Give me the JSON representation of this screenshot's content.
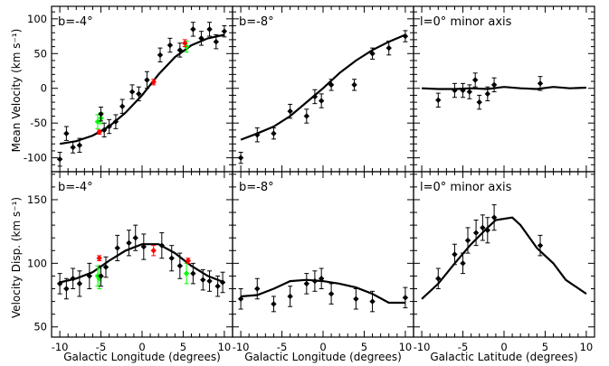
{
  "figure": {
    "ylabel_top": "Mean Velocity (km s⁻¹)",
    "ylabel_bottom": "Velocity Disp. (km s⁻¹)",
    "xlabel_longitude": "Galactic Longitude (degrees)",
    "xlabel_latitude": "Galactic Latitude (degrees)"
  },
  "chart_data": [
    {
      "id": "top-left",
      "type": "scatter",
      "title": "b=-4°",
      "xlim": [
        -11,
        11
      ],
      "ylim": [
        -120,
        118
      ],
      "xticks": [
        -10,
        -5,
        0,
        5,
        10
      ],
      "yticks": [
        -100,
        -50,
        0,
        50,
        100
      ],
      "model_line": [
        [
          -10,
          -80
        ],
        [
          -8,
          -76
        ],
        [
          -6,
          -68
        ],
        [
          -4,
          -55
        ],
        [
          -2,
          -35
        ],
        [
          0,
          -10
        ],
        [
          2,
          20
        ],
        [
          4,
          45
        ],
        [
          6,
          62
        ],
        [
          8,
          72
        ],
        [
          10,
          77
        ]
      ],
      "points": [
        {
          "x": -10,
          "y": -102,
          "err": 10,
          "color": "#000000"
        },
        {
          "x": -9.2,
          "y": -65,
          "err": 10,
          "color": "#000000"
        },
        {
          "x": -8.4,
          "y": -85,
          "err": 8,
          "color": "#000000"
        },
        {
          "x": -7.6,
          "y": -82,
          "err": 10,
          "color": "#000000"
        },
        {
          "x": -5.2,
          "y": -63,
          "err": 3,
          "color": "#ff0000"
        },
        {
          "x": -5.4,
          "y": -48,
          "err": 10,
          "color": "#00ff00"
        },
        {
          "x": -5.0,
          "y": -43,
          "err": 8,
          "color": "#00ff00"
        },
        {
          "x": -4.6,
          "y": -60,
          "err": 10,
          "color": "#000000"
        },
        {
          "x": -5.0,
          "y": -37,
          "err": 10,
          "color": "#000000"
        },
        {
          "x": -4.0,
          "y": -55,
          "err": 10,
          "color": "#000000"
        },
        {
          "x": -3.2,
          "y": -48,
          "err": 10,
          "color": "#000000"
        },
        {
          "x": -2.4,
          "y": -26,
          "err": 10,
          "color": "#000000"
        },
        {
          "x": -1.2,
          "y": -5,
          "err": 10,
          "color": "#000000"
        },
        {
          "x": -0.4,
          "y": -8,
          "err": 10,
          "color": "#000000"
        },
        {
          "x": 0.6,
          "y": 12,
          "err": 12,
          "color": "#000000"
        },
        {
          "x": 1.4,
          "y": 9,
          "err": 4,
          "color": "#ff0000"
        },
        {
          "x": 2.2,
          "y": 48,
          "err": 10,
          "color": "#000000"
        },
        {
          "x": 3.4,
          "y": 62,
          "err": 10,
          "color": "#000000"
        },
        {
          "x": 4.6,
          "y": 55,
          "err": 10,
          "color": "#000000"
        },
        {
          "x": 5.4,
          "y": 60,
          "err": 8,
          "color": "#00ff00"
        },
        {
          "x": 5.2,
          "y": 65,
          "err": 5,
          "color": "#ff0000"
        },
        {
          "x": 6.2,
          "y": 85,
          "err": 10,
          "color": "#000000"
        },
        {
          "x": 7.2,
          "y": 72,
          "err": 10,
          "color": "#000000"
        },
        {
          "x": 8.2,
          "y": 85,
          "err": 10,
          "color": "#000000"
        },
        {
          "x": 9.0,
          "y": 67,
          "err": 10,
          "color": "#000000"
        },
        {
          "x": 10,
          "y": 82,
          "err": 8,
          "color": "#000000"
        }
      ]
    },
    {
      "id": "top-mid",
      "type": "scatter",
      "title": "b=-8°",
      "xlim": [
        -11,
        11
      ],
      "ylim": [
        -120,
        118
      ],
      "xticks": [
        -10,
        -5,
        0,
        5,
        10
      ],
      "yticks": [
        -100,
        -50,
        0,
        50,
        100
      ],
      "model_line": [
        [
          -10,
          -74
        ],
        [
          -8,
          -65
        ],
        [
          -6,
          -55
        ],
        [
          -4,
          -40
        ],
        [
          -2,
          -20
        ],
        [
          0,
          0
        ],
        [
          2,
          22
        ],
        [
          4,
          40
        ],
        [
          6,
          55
        ],
        [
          8,
          67
        ],
        [
          10,
          77
        ]
      ],
      "points": [
        {
          "x": -10,
          "y": -100,
          "err": 8,
          "color": "#000000"
        },
        {
          "x": -8,
          "y": -67,
          "err": 10,
          "color": "#000000"
        },
        {
          "x": -6,
          "y": -65,
          "err": 8,
          "color": "#000000"
        },
        {
          "x": -4,
          "y": -33,
          "err": 10,
          "color": "#000000"
        },
        {
          "x": -2,
          "y": -40,
          "err": 10,
          "color": "#000000"
        },
        {
          "x": -1,
          "y": -12,
          "err": 10,
          "color": "#000000"
        },
        {
          "x": -0.2,
          "y": -18,
          "err": 10,
          "color": "#000000"
        },
        {
          "x": 1,
          "y": 5,
          "err": 8,
          "color": "#000000"
        },
        {
          "x": 3.8,
          "y": 5,
          "err": 8,
          "color": "#000000"
        },
        {
          "x": 6,
          "y": 50,
          "err": 8,
          "color": "#000000"
        },
        {
          "x": 8,
          "y": 58,
          "err": 10,
          "color": "#000000"
        },
        {
          "x": 10,
          "y": 75,
          "err": 8,
          "color": "#000000"
        }
      ]
    },
    {
      "id": "top-right",
      "type": "scatter",
      "title": "l=0° minor axis",
      "xlim": [
        -11,
        11
      ],
      "ylim": [
        -120,
        118
      ],
      "xticks": [
        -10,
        -5,
        0,
        5,
        10
      ],
      "yticks": [
        -100,
        -50,
        0,
        50,
        100
      ],
      "model_line": [
        [
          -10,
          0
        ],
        [
          -8,
          -1
        ],
        [
          -6,
          -1
        ],
        [
          -4,
          0
        ],
        [
          -2,
          -1
        ],
        [
          0,
          2
        ],
        [
          2,
          0
        ],
        [
          4,
          -1
        ],
        [
          6,
          2
        ],
        [
          8,
          0
        ],
        [
          10,
          1
        ]
      ],
      "points": [
        {
          "x": -8,
          "y": -17,
          "err": 10,
          "color": "#000000"
        },
        {
          "x": -6,
          "y": -3,
          "err": 10,
          "color": "#000000"
        },
        {
          "x": -5,
          "y": -3,
          "err": 10,
          "color": "#000000"
        },
        {
          "x": -4.2,
          "y": -5,
          "err": 10,
          "color": "#000000"
        },
        {
          "x": -3.5,
          "y": 12,
          "err": 10,
          "color": "#000000"
        },
        {
          "x": -3,
          "y": -20,
          "err": 10,
          "color": "#000000"
        },
        {
          "x": -2,
          "y": -8,
          "err": 10,
          "color": "#000000"
        },
        {
          "x": -1.2,
          "y": 5,
          "err": 10,
          "color": "#000000"
        },
        {
          "x": 4.4,
          "y": 7,
          "err": 10,
          "color": "#000000"
        }
      ]
    },
    {
      "id": "bottom-left",
      "type": "scatter",
      "title": "b=-4°",
      "xlim": [
        -11,
        11
      ],
      "ylim": [
        42,
        172
      ],
      "xticks": [
        -10,
        -5,
        0,
        5,
        10
      ],
      "yticks": [
        50,
        100,
        150
      ],
      "model_line": [
        [
          -10,
          85
        ],
        [
          -8,
          88
        ],
        [
          -6,
          93
        ],
        [
          -4,
          102
        ],
        [
          -2,
          110
        ],
        [
          0,
          115
        ],
        [
          2,
          115
        ],
        [
          4,
          108
        ],
        [
          6,
          98
        ],
        [
          8,
          90
        ],
        [
          10,
          85
        ]
      ],
      "points": [
        {
          "x": -10,
          "y": 84,
          "err": 8,
          "color": "#000000"
        },
        {
          "x": -9.2,
          "y": 80,
          "err": 8,
          "color": "#000000"
        },
        {
          "x": -8.4,
          "y": 88,
          "err": 8,
          "color": "#000000"
        },
        {
          "x": -7.6,
          "y": 84,
          "err": 10,
          "color": "#000000"
        },
        {
          "x": -6.4,
          "y": 90,
          "err": 10,
          "color": "#000000"
        },
        {
          "x": -5.4,
          "y": 90,
          "err": 8,
          "color": "#00ff00"
        },
        {
          "x": -5.2,
          "y": 88,
          "err": 8,
          "color": "#00ff00"
        },
        {
          "x": -5.2,
          "y": 104,
          "err": 2,
          "color": "#ff0000"
        },
        {
          "x": -5.0,
          "y": 90,
          "err": 8,
          "color": "#000000"
        },
        {
          "x": -4.4,
          "y": 97,
          "err": 8,
          "color": "#000000"
        },
        {
          "x": -3.0,
          "y": 112,
          "err": 10,
          "color": "#000000"
        },
        {
          "x": -1.6,
          "y": 116,
          "err": 10,
          "color": "#000000"
        },
        {
          "x": -0.8,
          "y": 120,
          "err": 10,
          "color": "#000000"
        },
        {
          "x": 0.2,
          "y": 113,
          "err": 10,
          "color": "#000000"
        },
        {
          "x": 1.4,
          "y": 110,
          "err": 4,
          "color": "#ff0000"
        },
        {
          "x": 2.4,
          "y": 114,
          "err": 10,
          "color": "#000000"
        },
        {
          "x": 3.6,
          "y": 104,
          "err": 10,
          "color": "#000000"
        },
        {
          "x": 4.6,
          "y": 98,
          "err": 10,
          "color": "#000000"
        },
        {
          "x": 5.4,
          "y": 92,
          "err": 8,
          "color": "#00ff00"
        },
        {
          "x": 5.6,
          "y": 102,
          "err": 2,
          "color": "#ff0000"
        },
        {
          "x": 6.2,
          "y": 92,
          "err": 8,
          "color": "#000000"
        },
        {
          "x": 7.4,
          "y": 87,
          "err": 8,
          "color": "#000000"
        },
        {
          "x": 8.2,
          "y": 86,
          "err": 8,
          "color": "#000000"
        },
        {
          "x": 9.2,
          "y": 82,
          "err": 8,
          "color": "#000000"
        },
        {
          "x": 9.8,
          "y": 85,
          "err": 8,
          "color": "#000000"
        }
      ]
    },
    {
      "id": "bottom-mid",
      "type": "scatter",
      "title": "b=-8°",
      "xlim": [
        -11,
        11
      ],
      "ylim": [
        42,
        172
      ],
      "xticks": [
        -10,
        -5,
        0,
        5,
        10
      ],
      "yticks": [
        50,
        100,
        150
      ],
      "model_line": [
        [
          -10,
          74
        ],
        [
          -8,
          75
        ],
        [
          -6,
          80
        ],
        [
          -4,
          86
        ],
        [
          -2,
          87
        ],
        [
          0,
          86
        ],
        [
          2,
          84
        ],
        [
          4,
          81
        ],
        [
          6,
          76
        ],
        [
          8,
          69
        ],
        [
          10,
          69
        ]
      ],
      "points": [
        {
          "x": -10,
          "y": 72,
          "err": 8,
          "color": "#000000"
        },
        {
          "x": -8,
          "y": 80,
          "err": 8,
          "color": "#000000"
        },
        {
          "x": -6,
          "y": 68,
          "err": 6,
          "color": "#000000"
        },
        {
          "x": -4,
          "y": 74,
          "err": 8,
          "color": "#000000"
        },
        {
          "x": -2,
          "y": 84,
          "err": 8,
          "color": "#000000"
        },
        {
          "x": -1,
          "y": 86,
          "err": 8,
          "color": "#000000"
        },
        {
          "x": -0.2,
          "y": 88,
          "err": 8,
          "color": "#000000"
        },
        {
          "x": 1,
          "y": 76,
          "err": 8,
          "color": "#000000"
        },
        {
          "x": 4,
          "y": 72,
          "err": 8,
          "color": "#000000"
        },
        {
          "x": 6,
          "y": 70,
          "err": 8,
          "color": "#000000"
        },
        {
          "x": 10,
          "y": 73,
          "err": 8,
          "color": "#000000"
        }
      ]
    },
    {
      "id": "bottom-right",
      "type": "scatter",
      "title": "l=0° minor axis",
      "xlim": [
        -11,
        11
      ],
      "ylim": [
        42,
        172
      ],
      "xticks": [
        -10,
        -5,
        0,
        5,
        10
      ],
      "yticks": [
        50,
        100,
        150
      ],
      "model_line": [
        [
          -10,
          72
        ],
        [
          -8,
          84
        ],
        [
          -6,
          100
        ],
        [
          -4,
          115
        ],
        [
          -2,
          128
        ],
        [
          -1,
          134
        ],
        [
          1,
          136
        ],
        [
          2,
          130
        ],
        [
          4,
          112
        ],
        [
          6,
          100
        ],
        [
          7.5,
          87
        ],
        [
          10,
          76
        ]
      ],
      "points": [
        {
          "x": -8,
          "y": 88,
          "err": 8,
          "color": "#000000"
        },
        {
          "x": -6,
          "y": 107,
          "err": 8,
          "color": "#000000"
        },
        {
          "x": -5,
          "y": 100,
          "err": 8,
          "color": "#000000"
        },
        {
          "x": -4.4,
          "y": 118,
          "err": 10,
          "color": "#000000"
        },
        {
          "x": -3.4,
          "y": 124,
          "err": 10,
          "color": "#000000"
        },
        {
          "x": -2.6,
          "y": 128,
          "err": 10,
          "color": "#000000"
        },
        {
          "x": -2,
          "y": 126,
          "err": 10,
          "color": "#000000"
        },
        {
          "x": -1.2,
          "y": 136,
          "err": 10,
          "color": "#000000"
        },
        {
          "x": 4.4,
          "y": 114,
          "err": 8,
          "color": "#000000"
        }
      ]
    }
  ]
}
